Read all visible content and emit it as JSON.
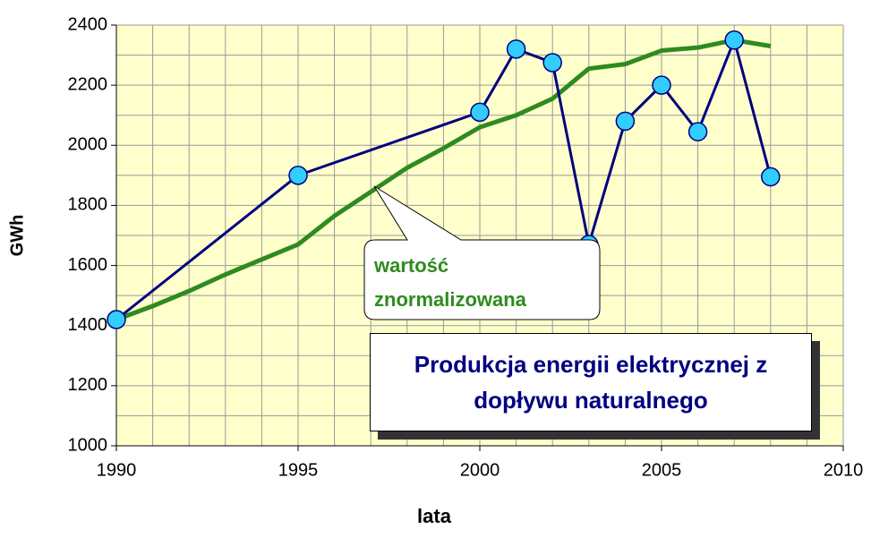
{
  "chart_data": {
    "type": "line",
    "title": "Produkcja energii elektrycznej z dopływu naturalnego",
    "xlabel": "lata",
    "ylabel": "GWh",
    "xlim": [
      1990,
      2010
    ],
    "xticks": [
      1990,
      1995,
      2000,
      2005,
      2010
    ],
    "ylim": [
      1000,
      2400
    ],
    "yticks": [
      1000,
      1200,
      1400,
      1600,
      1800,
      2000,
      2200,
      2400
    ],
    "grid": true,
    "grid_step": {
      "x": 1,
      "y": 100
    },
    "series": [
      {
        "color": "#000080",
        "marker_color": "#33ccff",
        "x": [
          1990,
          1995,
          2000,
          2001,
          2002,
          2003,
          2004,
          2005,
          2006,
          2007,
          2008
        ],
        "values": [
          1420,
          1900,
          2110,
          2320,
          2275,
          1670,
          2080,
          2200,
          2045,
          2350,
          1895
        ]
      },
      {
        "name": "wartość znormalizowana",
        "color": "#2e8b1e",
        "x": [
          1990,
          1991,
          1992,
          1993,
          1994,
          1995,
          1996,
          1997,
          1998,
          1999,
          2000,
          2001,
          2002,
          2003,
          2004,
          2005,
          2006,
          2007,
          2008
        ],
        "values": [
          1420,
          1465,
          1515,
          1570,
          1620,
          1670,
          1765,
          1845,
          1925,
          1990,
          2060,
          2100,
          2155,
          2255,
          2270,
          2315,
          2325,
          2350,
          2330
        ]
      }
    ]
  }
}
